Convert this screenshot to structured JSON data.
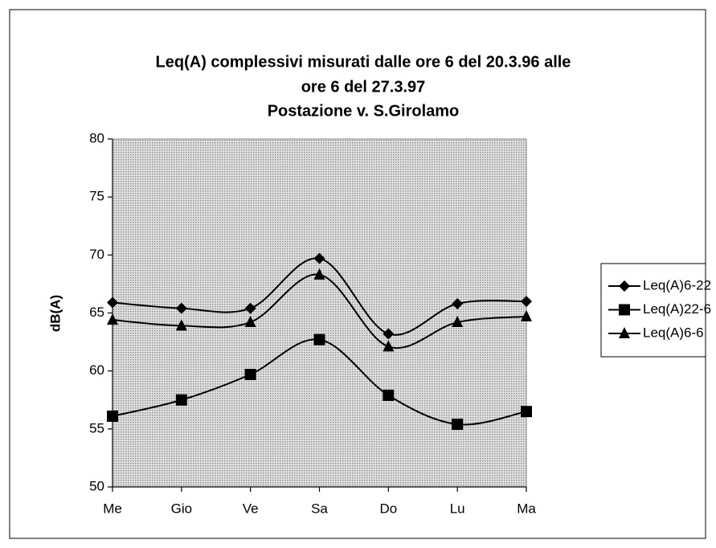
{
  "chart_data": {
    "type": "line",
    "title": [
      "Leq(A) complessivi misurati dalle ore 6 del 20.3.96 alle",
      "ore 6 del 27.3.97",
      "Postazione v. S.Girolamo"
    ],
    "ylabel": "dB(A)",
    "categories": [
      "Me",
      "Gio",
      "Ve",
      "Sa",
      "Do",
      "Lu",
      "Ma"
    ],
    "series": [
      {
        "name": "Leq(A)6-22",
        "color": "#000000",
        "marker": "diamond",
        "values": [
          65.9,
          65.4,
          65.4,
          69.7,
          63.2,
          65.8,
          66.0
        ]
      },
      {
        "name": "Leq(A)22-6",
        "color": "#000000",
        "marker": "square",
        "values": [
          56.1,
          57.5,
          59.7,
          62.7,
          57.9,
          55.4,
          56.5
        ]
      },
      {
        "name": "Leq(A)6-6",
        "color": "#000000",
        "marker": "triangle",
        "values": [
          64.4,
          63.9,
          64.2,
          68.3,
          62.1,
          64.2,
          64.7
        ]
      }
    ],
    "ylim": [
      50,
      80
    ],
    "yticks": [
      50,
      55,
      60,
      65,
      70,
      75,
      80
    ],
    "smooth": true,
    "legend": "right"
  }
}
